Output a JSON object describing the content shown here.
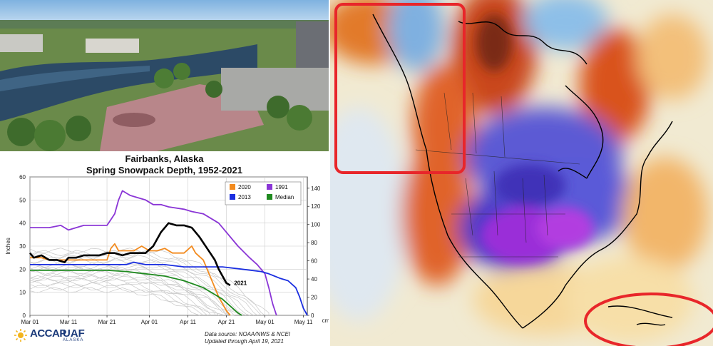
{
  "chart_data": {
    "type": "line",
    "title": "Fairbanks, Alaska",
    "subtitle": "Spring Snowpack Depth, 1952-2021",
    "ylabel": "Inches",
    "ylabel_right": "cm",
    "ylim": [
      0,
      60
    ],
    "ylim_right": [
      0,
      152.4
    ],
    "yticks": [
      0,
      10,
      20,
      30,
      40,
      50,
      60
    ],
    "yticks_right": [
      0,
      20,
      40,
      60,
      80,
      100,
      120,
      140
    ],
    "xlim": [
      0,
      72
    ],
    "xticks": [
      {
        "x": 0,
        "label": "Mar 01"
      },
      {
        "x": 10,
        "label": "Mar 11"
      },
      {
        "x": 20,
        "label": "Mar 21"
      },
      {
        "x": 31,
        "label": "Apr 01"
      },
      {
        "x": 41,
        "label": "Apr 11"
      },
      {
        "x": 51,
        "label": "Apr 21"
      },
      {
        "x": 61,
        "label": "May 01"
      },
      {
        "x": 71,
        "label": "May 11"
      }
    ],
    "grid": true,
    "legend_position": "top-right",
    "series": [
      {
        "name": "2020",
        "color": "#f28a1e",
        "points": [
          [
            0,
            25
          ],
          [
            3,
            25
          ],
          [
            5,
            24
          ],
          [
            10,
            24
          ],
          [
            16,
            24
          ],
          [
            18,
            24
          ],
          [
            20,
            24
          ],
          [
            21,
            29
          ],
          [
            22,
            31
          ],
          [
            23,
            28
          ],
          [
            27,
            28
          ],
          [
            29,
            30
          ],
          [
            31,
            28
          ],
          [
            33,
            28
          ],
          [
            35,
            29
          ],
          [
            37,
            27
          ],
          [
            40,
            27
          ],
          [
            42,
            30
          ],
          [
            43,
            27
          ],
          [
            45,
            24
          ],
          [
            47,
            16
          ],
          [
            49,
            8
          ],
          [
            51,
            2
          ],
          [
            52,
            0
          ]
        ]
      },
      {
        "name": "1991",
        "color": "#8a35d6",
        "points": [
          [
            0,
            38
          ],
          [
            5,
            38
          ],
          [
            8,
            39
          ],
          [
            10,
            37
          ],
          [
            12,
            38
          ],
          [
            14,
            39
          ],
          [
            17,
            39
          ],
          [
            20,
            39
          ],
          [
            22,
            44
          ],
          [
            23,
            50
          ],
          [
            24,
            54
          ],
          [
            26,
            52
          ],
          [
            28,
            51
          ],
          [
            30,
            50
          ],
          [
            32,
            48
          ],
          [
            34,
            48
          ],
          [
            36,
            47
          ],
          [
            40,
            46
          ],
          [
            42,
            45
          ],
          [
            45,
            44
          ],
          [
            47,
            42
          ],
          [
            49,
            40
          ],
          [
            51,
            36
          ],
          [
            54,
            30
          ],
          [
            57,
            25
          ],
          [
            59,
            22
          ],
          [
            61,
            18
          ],
          [
            62,
            12
          ],
          [
            63,
            5
          ],
          [
            64,
            0
          ]
        ]
      },
      {
        "name": "2013",
        "color": "#1a2ee0",
        "points": [
          [
            0,
            22
          ],
          [
            10,
            22
          ],
          [
            20,
            22
          ],
          [
            25,
            22
          ],
          [
            27,
            23
          ],
          [
            30,
            22
          ],
          [
            35,
            22
          ],
          [
            40,
            21
          ],
          [
            45,
            21
          ],
          [
            50,
            21
          ],
          [
            55,
            20
          ],
          [
            60,
            19
          ],
          [
            62,
            18
          ],
          [
            65,
            16
          ],
          [
            67,
            15
          ],
          [
            69,
            12
          ],
          [
            70,
            8
          ],
          [
            71,
            3
          ],
          [
            72,
            0
          ]
        ]
      },
      {
        "name": "Median",
        "color": "#1f8a1f",
        "points": [
          [
            0,
            19.5
          ],
          [
            10,
            19.5
          ],
          [
            20,
            19.5
          ],
          [
            25,
            19
          ],
          [
            30,
            18
          ],
          [
            35,
            17
          ],
          [
            40,
            15
          ],
          [
            45,
            12
          ],
          [
            48,
            9
          ],
          [
            50,
            7
          ],
          [
            52,
            4
          ],
          [
            54,
            1
          ],
          [
            55,
            0
          ]
        ]
      },
      {
        "name": "",
        "color": "#000000",
        "points": [
          [
            0,
            27
          ],
          [
            1,
            25
          ],
          [
            3,
            26
          ],
          [
            5,
            24
          ],
          [
            7,
            24
          ],
          [
            9,
            23
          ],
          [
            10,
            25
          ],
          [
            12,
            25
          ],
          [
            14,
            26
          ],
          [
            16,
            26
          ],
          [
            18,
            26
          ],
          [
            20,
            27
          ],
          [
            22,
            27
          ],
          [
            24,
            26
          ],
          [
            26,
            27
          ],
          [
            28,
            27
          ],
          [
            30,
            27
          ],
          [
            32,
            30
          ],
          [
            34,
            36
          ],
          [
            36,
            40
          ],
          [
            38,
            39
          ],
          [
            40,
            39
          ],
          [
            42,
            38
          ],
          [
            44,
            34
          ],
          [
            46,
            29
          ],
          [
            48,
            24
          ],
          [
            49,
            20
          ],
          [
            50,
            17
          ],
          [
            51,
            14
          ],
          [
            52,
            13
          ]
        ]
      }
    ],
    "annotations": [
      {
        "text": "2021",
        "x": 53,
        "y": 14
      }
    ]
  },
  "footer": {
    "source_line1": "Data source: NOAA/NWS & NCEI",
    "source_line2": "Updated through April 19, 2021"
  },
  "logo": {
    "accap": "ACCAP",
    "uaf": "UAF",
    "alaska": "ALASKA"
  },
  "colors": {
    "alert_outline": "#e8262a",
    "grid": "#cccccc",
    "history_lines": "#c8c8c8"
  }
}
